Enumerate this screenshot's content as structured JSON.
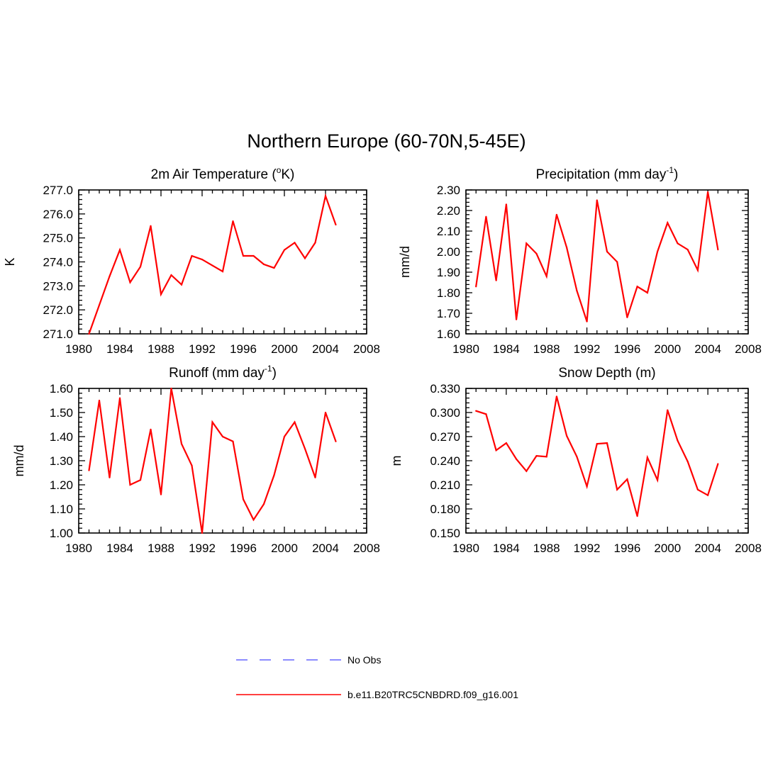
{
  "figure_title": "Northern Europe (60-70N,5-45E)",
  "colors": {
    "model_line": "#ff0000",
    "obs_line": "#6666ff",
    "axis": "#000000"
  },
  "legend": [
    {
      "label": "No Obs",
      "style": "dashed",
      "color": "#6666ff"
    },
    {
      "label": "b.e11.B20TRC5CNBDRD.f09_g16.001",
      "style": "solid",
      "color": "#ff0000"
    }
  ],
  "chart_data": [
    {
      "id": "temperature",
      "type": "line",
      "title": "2m Air Temperature (",
      "title_sup": "o",
      "title_after": "K)",
      "xlabel": "",
      "ylabel": "K",
      "xlim": [
        1980,
        2008
      ],
      "ylim": [
        271.0,
        277.0
      ],
      "xticks": [
        "1980",
        "1984",
        "1988",
        "1992",
        "1996",
        "2000",
        "2004",
        "2008"
      ],
      "yticks": [
        "271.0",
        "272.0",
        "273.0",
        "274.0",
        "275.0",
        "276.0",
        "277.0"
      ],
      "series": [
        {
          "name": "b.e11.B20TRC5CNBDRD.f09_g16.001",
          "x": [
            1981,
            1982,
            1983,
            1984,
            1985,
            1986,
            1987,
            1988,
            1989,
            1990,
            1991,
            1992,
            1993,
            1994,
            1995,
            1996,
            1997,
            1998,
            1999,
            2000,
            2001,
            2002,
            2003,
            2004,
            2005
          ],
          "y": [
            271.0,
            272.2,
            273.4,
            274.5,
            273.15,
            273.8,
            275.5,
            272.65,
            273.45,
            273.05,
            274.25,
            274.1,
            273.85,
            273.6,
            275.7,
            274.25,
            274.25,
            273.9,
            273.75,
            274.5,
            274.8,
            274.15,
            274.8,
            276.75,
            275.55
          ]
        }
      ]
    },
    {
      "id": "precipitation",
      "type": "line",
      "title": "Precipitation (mm day",
      "title_sup": "-1",
      "title_after": ")",
      "xlabel": "",
      "ylabel": "mm/d",
      "xlim": [
        1980,
        2008
      ],
      "ylim": [
        1.6,
        2.3
      ],
      "xticks": [
        "1980",
        "1984",
        "1988",
        "1992",
        "1996",
        "2000",
        "2004",
        "2008"
      ],
      "yticks": [
        "1.60",
        "1.70",
        "1.80",
        "1.90",
        "2.00",
        "2.10",
        "2.20",
        "2.30"
      ],
      "series": [
        {
          "name": "b.e11.B20TRC5CNBDRD.f09_g16.001",
          "x": [
            1981,
            1982,
            1983,
            1984,
            1985,
            1986,
            1987,
            1988,
            1989,
            1990,
            1991,
            1992,
            1993,
            1994,
            1995,
            1996,
            1997,
            1998,
            1999,
            2000,
            2001,
            2002,
            2003,
            2004,
            2005
          ],
          "y": [
            1.83,
            2.17,
            1.86,
            2.23,
            1.67,
            2.04,
            1.99,
            1.88,
            2.18,
            2.02,
            1.81,
            1.66,
            2.25,
            2.0,
            1.95,
            1.68,
            1.83,
            1.8,
            2.0,
            2.14,
            2.04,
            2.01,
            1.91,
            2.29,
            2.01
          ]
        }
      ]
    },
    {
      "id": "runoff",
      "type": "line",
      "title": "Runoff (mm day",
      "title_sup": "-1",
      "title_after": ")",
      "xlabel": "",
      "ylabel": "mm/d",
      "xlim": [
        1980,
        2008
      ],
      "ylim": [
        1.0,
        1.6
      ],
      "xticks": [
        "1980",
        "1984",
        "1988",
        "1992",
        "1996",
        "2000",
        "2004",
        "2008"
      ],
      "yticks": [
        "1.00",
        "1.10",
        "1.20",
        "1.30",
        "1.40",
        "1.50",
        "1.60"
      ],
      "series": [
        {
          "name": "b.e11.B20TRC5CNBDRD.f09_g16.001",
          "x": [
            1981,
            1982,
            1983,
            1984,
            1985,
            1986,
            1987,
            1988,
            1989,
            1990,
            1991,
            1992,
            1993,
            1994,
            1995,
            1996,
            1997,
            1998,
            1999,
            2000,
            2001,
            2002,
            2003,
            2004,
            2005
          ],
          "y": [
            1.26,
            1.55,
            1.23,
            1.56,
            1.2,
            1.22,
            1.43,
            1.16,
            1.6,
            1.37,
            1.28,
            1.0,
            1.46,
            1.4,
            1.38,
            1.14,
            1.055,
            1.12,
            1.24,
            1.4,
            1.46,
            1.35,
            1.23,
            1.5,
            1.38
          ]
        }
      ]
    },
    {
      "id": "snow_depth",
      "type": "line",
      "title": "Snow Depth (m)",
      "title_sup": "",
      "title_after": "",
      "xlabel": "",
      "ylabel": "m",
      "xlim": [
        1980,
        2008
      ],
      "ylim": [
        0.15,
        0.33
      ],
      "xticks": [
        "1980",
        "1984",
        "1988",
        "1992",
        "1996",
        "2000",
        "2004",
        "2008"
      ],
      "yticks": [
        "0.150",
        "0.180",
        "0.210",
        "0.240",
        "0.270",
        "0.300",
        "0.330"
      ],
      "series": [
        {
          "name": "b.e11.B20TRC5CNBDRD.f09_g16.001",
          "x": [
            1981,
            1982,
            1983,
            1984,
            1985,
            1986,
            1987,
            1988,
            1989,
            1990,
            1991,
            1992,
            1993,
            1994,
            1995,
            1996,
            1997,
            1998,
            1999,
            2000,
            2001,
            2002,
            2003,
            2004,
            2005
          ],
          "y": [
            0.302,
            0.298,
            0.253,
            0.262,
            0.242,
            0.227,
            0.246,
            0.245,
            0.32,
            0.271,
            0.245,
            0.208,
            0.261,
            0.262,
            0.204,
            0.217,
            0.171,
            0.244,
            0.216,
            0.303,
            0.265,
            0.239,
            0.204,
            0.197,
            0.236
          ]
        }
      ]
    }
  ]
}
